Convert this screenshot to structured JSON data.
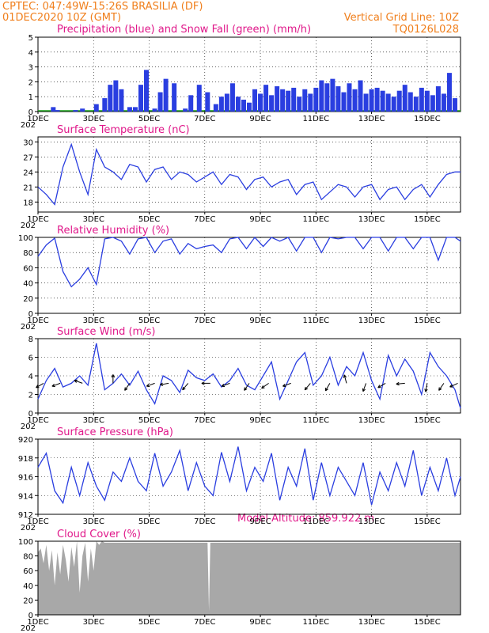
{
  "header": {
    "line1": "CPTEC:  047:49W-15:26S  BRASILIA (DF)",
    "line2": "01DEC2020 10Z (GMT)",
    "grid_note": "Vertical Grid Line: 10Z",
    "run_id": "TQ0126L028"
  },
  "colors": {
    "header": "#f07f1c",
    "title": "#e0188a",
    "series": "#2a3ee0",
    "snow": "#1aa01a",
    "cloud": "#a8a8a8"
  },
  "x_axis": {
    "tick_labels": [
      "1DEC",
      "3DEC",
      "5DEC",
      "7DEC",
      "9DEC",
      "11DEC",
      "13DEC",
      "15DEC"
    ],
    "tick_days": [
      0,
      2,
      4,
      6,
      8,
      10,
      12,
      14
    ],
    "year_fragment": "202",
    "day_range": [
      0,
      15.2
    ]
  },
  "model_altitude": "Model Altitude: 859.922 m",
  "chart_data": [
    {
      "id": "precip",
      "type": "bar",
      "title": "Precipitation (blue) and Snow Fall (green) (mm/h)",
      "ylim": [
        0,
        5
      ],
      "yticks": [
        "0",
        "1",
        "2",
        "3",
        "4",
        "5"
      ],
      "grid": true,
      "series": [
        {
          "days": [
            0.55,
            0.7,
            1.35,
            1.6,
            2.1,
            2.4,
            2.6,
            2.8,
            3.0,
            3.3,
            3.5,
            3.7,
            3.9,
            4.2,
            4.4,
            4.6,
            4.9,
            5.3,
            5.5,
            5.8,
            6.1,
            6.4,
            6.6,
            6.8,
            7.0,
            7.2,
            7.4,
            7.6,
            7.8,
            8.0,
            8.2,
            8.4,
            8.6,
            8.8,
            9.0,
            9.2,
            9.4,
            9.6,
            9.8,
            10.0,
            10.2,
            10.4,
            10.6,
            10.8,
            11.0,
            11.2,
            11.4,
            11.6,
            11.8,
            12.0,
            12.2,
            12.4,
            12.6,
            12.8,
            13.0,
            13.2,
            13.4,
            13.6,
            13.8,
            14.0,
            14.2,
            14.4,
            14.6,
            14.8,
            15.0
          ],
          "values": [
            0.3,
            0.1,
            0.1,
            0.2,
            0.5,
            0.9,
            1.8,
            2.1,
            1.5,
            0.3,
            0.3,
            1.8,
            2.8,
            0.2,
            1.3,
            2.2,
            1.9,
            0.2,
            1.1,
            1.8,
            1.3,
            0.5,
            1.0,
            1.2,
            1.9,
            1.0,
            0.8,
            0.6,
            1.5,
            1.2,
            1.8,
            1.1,
            1.7,
            1.5,
            1.4,
            1.6,
            1.0,
            1.5,
            1.2,
            1.6,
            2.1,
            1.9,
            2.2,
            1.7,
            1.3,
            1.9,
            1.5,
            2.1,
            1.2,
            1.5,
            1.6,
            1.4,
            1.2,
            1.0,
            1.4,
            1.8,
            1.3,
            1.0,
            1.6,
            1.4,
            1.1,
            1.7,
            1.2,
            2.6,
            0.9
          ]
        }
      ]
    },
    {
      "id": "temp",
      "type": "line",
      "title": "Surface Temperature (nC)",
      "ylim": [
        16,
        31
      ],
      "yticks": [
        18,
        21,
        24,
        27,
        30
      ],
      "grid": true,
      "x": [
        0,
        0.3,
        0.6,
        0.9,
        1.2,
        1.5,
        1.8,
        2.1,
        2.4,
        2.7,
        3.0,
        3.3,
        3.6,
        3.9,
        4.2,
        4.5,
        4.8,
        5.1,
        5.4,
        5.7,
        6.0,
        6.3,
        6.6,
        6.9,
        7.2,
        7.5,
        7.8,
        8.1,
        8.4,
        8.7,
        9.0,
        9.3,
        9.6,
        9.9,
        10.2,
        10.5,
        10.8,
        11.1,
        11.4,
        11.7,
        12.0,
        12.3,
        12.6,
        12.9,
        13.2,
        13.5,
        13.8,
        14.1,
        14.4,
        14.7,
        15.0,
        15.2
      ],
      "y": [
        21,
        19.5,
        17.5,
        25,
        29.5,
        24,
        19.5,
        28.5,
        25,
        24,
        22.5,
        25.5,
        25,
        22,
        24.5,
        25,
        22.5,
        24,
        23.5,
        22,
        23,
        24,
        21.5,
        23.5,
        23,
        20.5,
        22.5,
        23,
        21,
        22,
        22.5,
        19.5,
        21.5,
        22,
        18.5,
        20,
        21.5,
        21,
        19,
        21,
        21.5,
        18.5,
        20.5,
        21,
        18.5,
        20.5,
        21.5,
        19,
        21.5,
        23.5,
        24,
        24
      ]
    },
    {
      "id": "rh",
      "type": "line",
      "title": "Relative Humidity (%)",
      "ylim": [
        0,
        100
      ],
      "yticks": [
        0,
        20,
        40,
        60,
        80,
        100
      ],
      "grid": true,
      "x": [
        0,
        0.3,
        0.6,
        0.9,
        1.2,
        1.5,
        1.8,
        2.1,
        2.4,
        2.7,
        3.0,
        3.3,
        3.6,
        3.9,
        4.2,
        4.5,
        4.8,
        5.1,
        5.4,
        5.7,
        6.0,
        6.3,
        6.6,
        6.9,
        7.2,
        7.5,
        7.8,
        8.1,
        8.4,
        8.7,
        9.0,
        9.3,
        9.6,
        9.9,
        10.2,
        10.5,
        10.8,
        11.1,
        11.4,
        11.7,
        12.0,
        12.3,
        12.6,
        12.9,
        13.2,
        13.5,
        13.8,
        14.1,
        14.4,
        14.7,
        15.0,
        15.2
      ],
      "y": [
        75,
        90,
        99,
        55,
        35,
        45,
        60,
        38,
        98,
        100,
        95,
        78,
        98,
        100,
        80,
        95,
        98,
        78,
        92,
        85,
        88,
        90,
        80,
        98,
        100,
        85,
        100,
        88,
        100,
        95,
        100,
        82,
        100,
        100,
        80,
        100,
        98,
        100,
        100,
        85,
        100,
        100,
        82,
        100,
        100,
        85,
        100,
        100,
        70,
        100,
        100,
        95
      ]
    },
    {
      "id": "wind",
      "type": "line",
      "title": "Surface Wind (m/s)",
      "ylim": [
        0,
        8
      ],
      "yticks": [
        0,
        2,
        4,
        6,
        8
      ],
      "grid": true,
      "x": [
        0,
        0.3,
        0.6,
        0.9,
        1.2,
        1.5,
        1.8,
        2.1,
        2.4,
        2.7,
        3.0,
        3.3,
        3.6,
        3.9,
        4.2,
        4.5,
        4.8,
        5.1,
        5.4,
        5.7,
        6.0,
        6.3,
        6.6,
        6.9,
        7.2,
        7.5,
        7.8,
        8.1,
        8.4,
        8.7,
        9.0,
        9.3,
        9.6,
        9.9,
        10.2,
        10.5,
        10.8,
        11.1,
        11.4,
        11.7,
        12.0,
        12.3,
        12.6,
        12.9,
        13.2,
        13.5,
        13.8,
        14.1,
        14.4,
        14.7,
        15.0,
        15.2
      ],
      "y": [
        1.5,
        3.5,
        4.8,
        2.8,
        3.2,
        4.0,
        3.0,
        7.5,
        2.5,
        3.2,
        4.2,
        3.0,
        4.5,
        2.5,
        1.0,
        4.0,
        3.5,
        2.2,
        4.6,
        3.8,
        3.5,
        4.2,
        2.8,
        3.5,
        4.8,
        3.0,
        2.5,
        4.0,
        5.5,
        1.5,
        3.5,
        5.5,
        6.5,
        3.0,
        4.0,
        6.0,
        3.0,
        5.0,
        4.0,
        6.5,
        3.5,
        1.5,
        6.2,
        4.0,
        5.8,
        4.5,
        2.0,
        6.5,
        5.0,
        4.0,
        2.5,
        0.5
      ],
      "arrow_days": [
        0.2,
        0.8,
        1.6,
        2.7,
        3.3,
        4.2,
        4.7,
        5.4,
        6.2,
        6.9,
        7.6,
        8.3,
        9.1,
        9.8,
        10.5,
        11.1,
        11.8,
        12.5,
        13.2,
        14.0,
        14.6,
        15.1
      ],
      "arrow_dirs_deg": [
        210,
        200,
        160,
        90,
        235,
        200,
        190,
        230,
        180,
        200,
        235,
        215,
        200,
        230,
        240,
        105,
        250,
        210,
        185,
        260,
        235,
        205
      ]
    },
    {
      "id": "pressure",
      "type": "line",
      "title": "Surface Pressure (hPa)",
      "ylim": [
        912,
        920
      ],
      "yticks": [
        912,
        914,
        916,
        918,
        920
      ],
      "grid": true,
      "x": [
        0,
        0.3,
        0.6,
        0.9,
        1.2,
        1.5,
        1.8,
        2.1,
        2.4,
        2.7,
        3.0,
        3.3,
        3.6,
        3.9,
        4.2,
        4.5,
        4.8,
        5.1,
        5.4,
        5.7,
        6.0,
        6.3,
        6.6,
        6.9,
        7.2,
        7.5,
        7.8,
        8.1,
        8.4,
        8.7,
        9.0,
        9.3,
        9.6,
        9.9,
        10.2,
        10.5,
        10.8,
        11.1,
        11.4,
        11.7,
        12.0,
        12.3,
        12.6,
        12.9,
        13.2,
        13.5,
        13.8,
        14.1,
        14.4,
        14.7,
        15.0,
        15.2
      ],
      "y": [
        917,
        918.5,
        914.5,
        913.2,
        917,
        914,
        917.5,
        915,
        913.5,
        916.5,
        915.5,
        918,
        915.5,
        914.5,
        918.5,
        915,
        916.5,
        918.8,
        914.5,
        917.5,
        915,
        914,
        918.6,
        915.5,
        919.2,
        914.5,
        917,
        915.5,
        918.5,
        913.5,
        917,
        915,
        919,
        913.5,
        917.5,
        914,
        917,
        915.5,
        914,
        917.5,
        913,
        916.5,
        914.5,
        917.5,
        915,
        918.8,
        914,
        917,
        914.5,
        918,
        914,
        916
      ]
    },
    {
      "id": "cloud",
      "type": "area",
      "title": "Cloud Cover (%)",
      "ylim": [
        0,
        100
      ],
      "yticks": [
        0,
        20,
        40,
        60,
        80,
        100
      ],
      "grid": false,
      "x": [
        0,
        0.1,
        0.2,
        0.3,
        0.4,
        0.5,
        0.6,
        0.7,
        0.8,
        0.9,
        1.0,
        1.1,
        1.2,
        1.3,
        1.4,
        1.5,
        1.6,
        1.7,
        1.8,
        1.9,
        2.0,
        2.1,
        2.2,
        2.3,
        2.4,
        6.1,
        6.15,
        6.2,
        15.2
      ],
      "y": [
        85,
        90,
        70,
        95,
        60,
        88,
        40,
        85,
        55,
        95,
        75,
        45,
        92,
        65,
        100,
        30,
        80,
        98,
        45,
        90,
        60,
        100,
        95,
        100,
        98,
        98,
        5,
        98,
        98
      ]
    }
  ]
}
